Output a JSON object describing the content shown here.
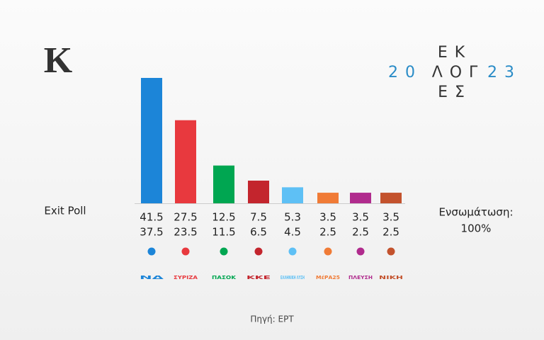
{
  "chart_data": {
    "type": "bar",
    "brand": "Κ",
    "logo": {
      "top": "ΕΚ",
      "left": "20",
      "middle": "ΛΟΓ",
      "right": "23",
      "bottom": "ΕΣ"
    },
    "label": "Exit Poll",
    "integration": {
      "label": "Ενσωμάτωση:",
      "value": "100%"
    },
    "source": "Πηγή: ΕΡΤ",
    "categories": [
      "ΝΔ",
      "ΣΥΡΙΖΑ",
      "ΠΑΣΟΚ",
      "ΚΚΕ",
      "ΕΛΛΗΝΙΚΗ ΛΥΣΗ",
      "ΜέΡΑ25",
      "ΠΛΕΥΣΗ",
      "ΝΙΚΗ"
    ],
    "values": [
      41.5,
      27.5,
      12.5,
      7.5,
      5.3,
      3.5,
      3.5,
      3.5
    ],
    "values_low": [
      37.5,
      23.5,
      11.5,
      6.5,
      4.5,
      2.5,
      2.5,
      2.5
    ],
    "colors": [
      "#1c85d8",
      "#e8393e",
      "#00a651",
      "#c3252d",
      "#5ec0f5",
      "#f07b36",
      "#b02b8d",
      "#c3522d"
    ]
  }
}
